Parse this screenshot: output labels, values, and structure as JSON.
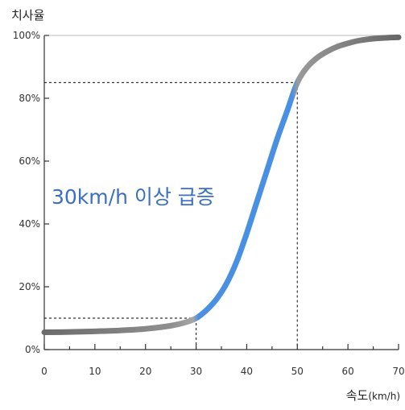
{
  "chart_data": {
    "type": "line",
    "ylabel": "치사율",
    "xlabel": "속도",
    "xlabel_unit": "(km/h)",
    "annotation": "30km/h 이상 급증",
    "xlim": [
      0,
      70
    ],
    "ylim": [
      0,
      100
    ],
    "xticks": [
      0,
      10,
      20,
      30,
      40,
      50,
      60,
      70
    ],
    "yticks": [
      0,
      20,
      40,
      60,
      80,
      100
    ],
    "ytick_labels": [
      "0%",
      "20%",
      "40%",
      "60%",
      "80%",
      "100%"
    ],
    "series": [
      {
        "x": [
          0,
          5,
          10,
          15,
          20,
          25,
          28,
          30,
          32,
          34,
          36,
          38,
          40,
          42,
          44,
          46,
          48,
          50,
          52,
          54,
          56,
          58,
          60,
          62,
          64,
          66,
          68,
          70
        ],
        "y": [
          5.5,
          5.6,
          5.8,
          6.1,
          6.6,
          7.6,
          8.7,
          10,
          12.5,
          16,
          21,
          28,
          37,
          47,
          57,
          67,
          76,
          85,
          90,
          93,
          95,
          96.5,
          97.5,
          98.3,
          98.8,
          99.1,
          99.3,
          99.4
        ]
      }
    ],
    "highlight_range": [
      30,
      50
    ],
    "reference_points": [
      {
        "x": 30,
        "y": 10
      },
      {
        "x": 50,
        "y": 85
      }
    ],
    "grid": false,
    "colors": {
      "curve_gray": "#6b6b6b",
      "curve_light_gray": "#9a9a9a",
      "curve_blue": "#4a90e2",
      "annotation": "#3a6fc4",
      "axis": "#333333"
    }
  }
}
